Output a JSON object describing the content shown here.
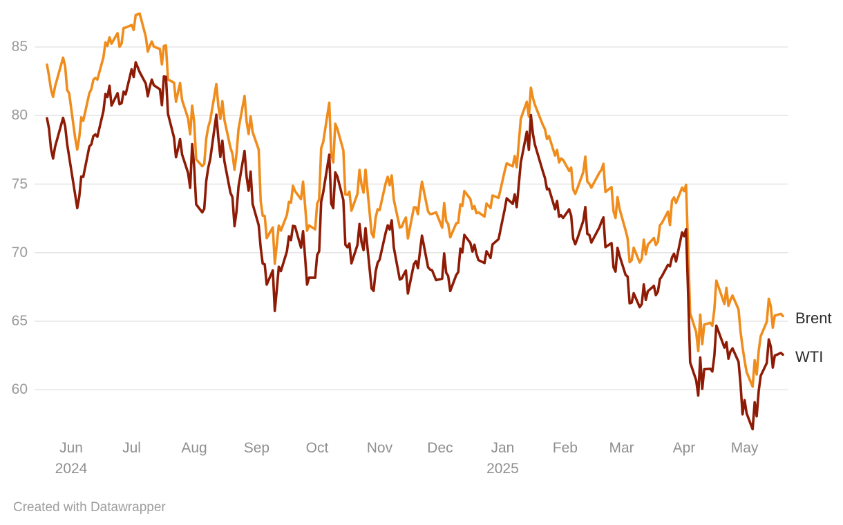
{
  "footer": {
    "credit": "Created with Datawrapper"
  },
  "legend": {
    "brent": "Brent",
    "wti": "WTI"
  },
  "colors": {
    "brent": "#F08C1C",
    "wti": "#8E1B05",
    "grid": "#e5e5e5",
    "axis_text": "#999999",
    "legend_text": "#2b2b2b",
    "background": "#ffffff"
  },
  "chart_data": {
    "type": "line",
    "title": "",
    "xlabel": "",
    "ylabel": "",
    "grid": "horizontal",
    "legend_position": "right-of-line-ends",
    "x_unit": "trading days, day 0 = 2024-05-20",
    "x_range_days": [
      0,
      365
    ],
    "ylim": [
      57,
      87.5
    ],
    "yticks": [
      85,
      80,
      75,
      70,
      65,
      60
    ],
    "xticks": [
      {
        "label": "Jun",
        "year": "2024",
        "day": 12
      },
      {
        "label": "Jul",
        "day": 42
      },
      {
        "label": "Aug",
        "day": 73
      },
      {
        "label": "Sep",
        "day": 104
      },
      {
        "label": "Oct",
        "day": 134
      },
      {
        "label": "Nov",
        "day": 165
      },
      {
        "label": "Dec",
        "day": 195
      },
      {
        "label": "Jan",
        "year": "2025",
        "day": 226
      },
      {
        "label": "Feb",
        "day": 257
      },
      {
        "label": "Mar",
        "day": 285
      },
      {
        "label": "Apr",
        "day": 316
      },
      {
        "label": "May",
        "day": 346
      }
    ],
    "days": [
      0,
      1,
      2,
      3,
      4,
      8,
      9,
      10,
      11,
      14,
      15,
      16,
      17,
      18,
      21,
      22,
      23,
      24,
      25,
      28,
      29,
      30,
      31,
      32,
      35,
      36,
      37,
      38,
      39,
      42,
      43,
      44,
      46,
      49,
      50,
      51,
      52,
      53,
      56,
      57,
      58,
      59,
      60,
      63,
      64,
      65,
      66,
      67,
      70,
      71,
      72,
      73,
      74,
      77,
      78,
      79,
      80,
      81,
      84,
      85,
      86,
      87,
      88,
      91,
      92,
      93,
      94,
      95,
      98,
      99,
      100,
      101,
      102,
      105,
      106,
      107,
      108,
      109,
      112,
      113,
      114,
      115,
      116,
      119,
      120,
      121,
      122,
      123,
      126,
      127,
      128,
      129,
      130,
      133,
      134,
      135,
      136,
      137,
      140,
      141,
      142,
      143,
      144,
      147,
      148,
      149,
      150,
      151,
      154,
      155,
      156,
      157,
      158,
      161,
      162,
      163,
      164,
      165,
      168,
      169,
      170,
      171,
      172,
      175,
      176,
      177,
      178,
      179,
      182,
      183,
      184,
      185,
      186,
      189,
      190,
      191,
      193,
      196,
      197,
      198,
      199,
      200,
      203,
      204,
      205,
      206,
      207,
      210,
      211,
      212,
      213,
      214,
      217,
      218,
      220,
      221,
      224,
      225,
      227,
      228,
      231,
      232,
      233,
      235,
      238,
      239,
      240,
      241,
      242,
      246,
      247,
      248,
      249,
      252,
      253,
      254,
      255,
      256,
      259,
      260,
      261,
      262,
      263,
      266,
      267,
      268,
      269,
      270,
      274,
      275,
      276,
      277,
      280,
      281,
      282,
      283,
      284,
      287,
      288,
      289,
      290,
      291,
      294,
      295,
      296,
      297,
      298,
      301,
      302,
      303,
      304,
      305,
      308,
      309,
      310,
      311,
      312,
      315,
      316,
      317,
      318,
      319,
      322,
      323,
      324,
      325,
      326,
      329,
      330,
      331,
      332,
      336,
      337,
      338,
      339,
      340,
      343,
      344,
      345,
      346,
      347,
      350,
      351,
      352,
      353,
      354,
      357,
      358,
      359,
      360,
      361,
      364,
      365
    ],
    "series": [
      {
        "name": "Brent",
        "color": "#F08C1C",
        "values": [
          83.71,
          82.88,
          81.9,
          81.36,
          82.12,
          84.22,
          83.6,
          81.86,
          81.62,
          78.36,
          77.52,
          78.41,
          79.87,
          79.62,
          81.63,
          81.92,
          82.6,
          82.75,
          82.62,
          84.25,
          85.33,
          85.07,
          85.71,
          85.24,
          86.01,
          85.01,
          85.25,
          86.39,
          86.41,
          86.6,
          86.24,
          87.34,
          87.43,
          85.75,
          84.66,
          85.08,
          85.4,
          85.03,
          84.85,
          83.73,
          85.08,
          85.11,
          82.63,
          82.4,
          81.01,
          81.71,
          82.37,
          81.13,
          79.78,
          78.63,
          80.72,
          79.52,
          76.81,
          76.3,
          76.48,
          78.33,
          79.16,
          79.66,
          82.3,
          80.69,
          79.76,
          81.04,
          79.68,
          77.66,
          77.2,
          76.05,
          77.22,
          79.02,
          81.43,
          79.55,
          78.65,
          79.94,
          78.8,
          77.52,
          73.75,
          72.7,
          72.69,
          71.06,
          71.84,
          69.19,
          70.61,
          71.97,
          71.61,
          72.75,
          73.7,
          73.65,
          74.88,
          74.49,
          73.9,
          75.17,
          73.46,
          71.6,
          71.98,
          71.7,
          73.56,
          73.9,
          77.62,
          78.05,
          80.93,
          77.18,
          76.58,
          79.4,
          79.04,
          77.46,
          74.25,
          74.22,
          74.45,
          73.06,
          74.29,
          76.04,
          74.96,
          74.38,
          76.05,
          71.42,
          71.12,
          72.55,
          73.16,
          73.1,
          75.08,
          75.53,
          74.92,
          75.63,
          73.87,
          71.83,
          71.89,
          72.28,
          72.56,
          71.04,
          73.3,
          73.31,
          72.81,
          74.23,
          75.17,
          73.01,
          72.81,
          72.83,
          72.94,
          71.83,
          73.62,
          72.31,
          72.09,
          71.12,
          72.14,
          72.19,
          73.52,
          73.41,
          74.49,
          73.91,
          73.19,
          73.39,
          72.88,
          72.94,
          72.63,
          73.58,
          73.26,
          74.17,
          74.0,
          74.64,
          75.93,
          76.51,
          76.3,
          77.05,
          76.23,
          79.76,
          81.01,
          79.92,
          82.03,
          81.29,
          80.79,
          79.29,
          79.0,
          78.29,
          78.5,
          77.08,
          77.49,
          76.58,
          76.87,
          76.76,
          75.96,
          76.2,
          74.61,
          74.29,
          74.66,
          75.87,
          77.0,
          75.18,
          75.02,
          74.74,
          75.84,
          76.04,
          76.48,
          74.43,
          74.78,
          73.02,
          72.53,
          74.04,
          73.18,
          71.62,
          71.04,
          69.3,
          69.46,
          70.36,
          69.28,
          69.56,
          70.95,
          69.88,
          70.58,
          71.07,
          70.56,
          70.78,
          72.0,
          72.16,
          73.0,
          72.02,
          73.79,
          74.03,
          73.63,
          74.74,
          74.49,
          74.95,
          70.14,
          65.58,
          64.21,
          62.82,
          65.48,
          63.33,
          64.76,
          64.88,
          64.67,
          65.85,
          67.96,
          66.26,
          67.44,
          66.12,
          66.55,
          66.87,
          65.86,
          64.25,
          63.12,
          62.13,
          61.29,
          60.23,
          62.15,
          61.12,
          62.84,
          63.91,
          64.96,
          66.63,
          66.09,
          64.53,
          65.41,
          65.54,
          65.38
        ]
      },
      {
        "name": "WTI",
        "color": "#8E1B05",
        "values": [
          79.8,
          79.06,
          77.57,
          76.87,
          77.72,
          79.83,
          79.23,
          77.91,
          76.99,
          74.22,
          73.25,
          74.07,
          75.55,
          75.53,
          77.74,
          77.9,
          78.5,
          78.62,
          78.45,
          80.33,
          81.57,
          81.35,
          82.17,
          80.73,
          81.63,
          80.83,
          80.9,
          81.74,
          81.54,
          83.38,
          82.81,
          83.88,
          83.16,
          82.33,
          81.41,
          82.1,
          82.62,
          82.21,
          81.91,
          80.76,
          82.85,
          82.82,
          80.13,
          78.4,
          76.96,
          77.59,
          78.28,
          77.16,
          75.81,
          74.73,
          77.91,
          76.31,
          73.52,
          72.94,
          73.2,
          75.23,
          76.19,
          76.84,
          80.06,
          78.35,
          76.98,
          78.16,
          76.65,
          74.37,
          74.04,
          71.93,
          73.01,
          74.83,
          77.42,
          75.53,
          74.52,
          75.91,
          73.55,
          72.0,
          70.34,
          69.2,
          69.15,
          67.67,
          68.71,
          65.75,
          67.31,
          68.97,
          68.65,
          70.09,
          71.19,
          70.91,
          71.95,
          71.92,
          70.37,
          71.56,
          69.69,
          67.67,
          68.18,
          68.17,
          69.83,
          70.1,
          73.71,
          74.38,
          77.14,
          73.57,
          73.24,
          75.85,
          75.56,
          73.83,
          70.58,
          70.39,
          70.67,
          69.22,
          70.56,
          72.09,
          70.77,
          70.19,
          71.78,
          67.38,
          67.21,
          68.61,
          69.26,
          69.49,
          71.47,
          71.99,
          71.69,
          72.36,
          70.38,
          68.04,
          68.12,
          68.43,
          68.7,
          67.02,
          69.16,
          69.39,
          68.87,
          70.1,
          71.24,
          68.94,
          68.77,
          68.72,
          68.0,
          68.1,
          69.94,
          68.54,
          68.3,
          67.2,
          68.37,
          68.59,
          70.29,
          70.02,
          71.29,
          70.71,
          70.08,
          70.58,
          69.91,
          69.46,
          69.24,
          70.1,
          69.62,
          70.6,
          70.99,
          71.72,
          73.13,
          73.96,
          73.56,
          74.25,
          73.32,
          76.57,
          78.82,
          77.5,
          80.04,
          78.68,
          77.88,
          75.89,
          75.44,
          74.62,
          74.66,
          73.17,
          73.77,
          72.62,
          72.73,
          72.53,
          73.16,
          72.7,
          71.03,
          70.61,
          71.0,
          72.32,
          73.32,
          71.37,
          71.29,
          70.74,
          71.85,
          72.25,
          72.57,
          70.4,
          70.7,
          68.93,
          68.62,
          70.35,
          69.76,
          68.37,
          68.26,
          66.31,
          66.36,
          67.04,
          66.03,
          66.25,
          67.68,
          66.55,
          67.18,
          67.58,
          66.9,
          67.16,
          68.07,
          68.28,
          69.11,
          69.0,
          69.65,
          69.92,
          69.36,
          71.48,
          71.2,
          71.71,
          66.95,
          61.99,
          60.7,
          59.58,
          62.35,
          60.07,
          61.5,
          61.53,
          61.33,
          62.47,
          64.68,
          63.08,
          63.47,
          62.27,
          62.79,
          63.02,
          62.05,
          60.42,
          58.21,
          59.24,
          58.29,
          57.13,
          59.09,
          58.07,
          59.91,
          61.02,
          61.95,
          63.67,
          63.15,
          61.62,
          62.49,
          62.69,
          62.56
        ]
      }
    ]
  }
}
